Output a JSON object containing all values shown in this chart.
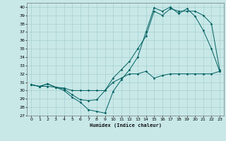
{
  "xlabel": "Humidex (Indice chaleur)",
  "xlim": [
    -0.5,
    23.5
  ],
  "ylim": [
    27,
    40.5
  ],
  "yticks": [
    27,
    28,
    29,
    30,
    31,
    32,
    33,
    34,
    35,
    36,
    37,
    38,
    39,
    40
  ],
  "xticks": [
    0,
    1,
    2,
    3,
    4,
    5,
    6,
    7,
    8,
    9,
    10,
    11,
    12,
    13,
    14,
    15,
    16,
    17,
    18,
    19,
    20,
    21,
    22,
    23
  ],
  "bg_color": "#c8e8e8",
  "grid_color": "#a0c8c8",
  "line_color": "#006060",
  "line1_x": [
    0,
    1,
    2,
    3,
    4,
    5,
    6,
    7,
    8,
    9,
    10,
    11,
    12,
    13,
    14,
    15,
    16,
    17,
    18,
    19,
    20,
    21,
    22,
    23
  ],
  "line1_y": [
    30.7,
    30.5,
    30.8,
    30.4,
    30.0,
    29.2,
    28.6,
    27.7,
    27.5,
    27.3,
    29.9,
    31.3,
    32.5,
    34.0,
    37.0,
    39.9,
    39.5,
    40.0,
    39.2,
    39.8,
    38.9,
    37.2,
    35.0,
    32.3
  ],
  "line2_x": [
    0,
    1,
    2,
    3,
    4,
    5,
    6,
    7,
    8,
    9,
    10,
    11,
    12,
    13,
    14,
    15,
    16,
    17,
    18,
    19,
    20,
    21,
    22,
    23
  ],
  "line2_y": [
    30.7,
    30.5,
    30.8,
    30.4,
    30.2,
    29.5,
    28.9,
    28.8,
    28.9,
    30.0,
    31.5,
    32.5,
    33.5,
    35.0,
    36.5,
    39.5,
    39.0,
    39.8,
    39.5,
    39.5,
    39.5,
    39.0,
    38.0,
    32.5
  ],
  "line3_x": [
    0,
    1,
    2,
    3,
    4,
    5,
    6,
    7,
    8,
    9,
    10,
    11,
    12,
    13,
    14,
    15,
    16,
    17,
    18,
    19,
    20,
    21,
    22,
    23
  ],
  "line3_y": [
    30.7,
    30.5,
    30.5,
    30.4,
    30.3,
    30.0,
    30.0,
    30.0,
    30.0,
    30.0,
    31.0,
    31.5,
    32.0,
    32.0,
    32.3,
    31.5,
    31.8,
    32.0,
    32.0,
    32.0,
    32.0,
    32.0,
    32.0,
    32.3
  ]
}
